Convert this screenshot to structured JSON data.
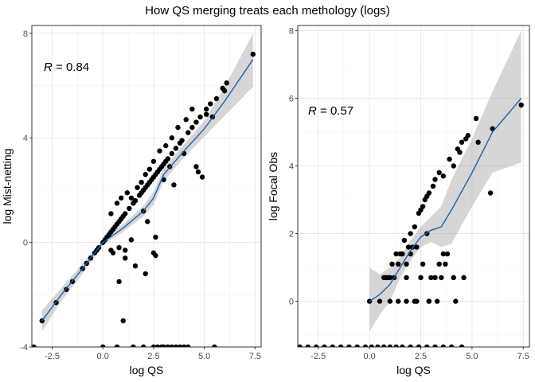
{
  "title": "How QS merging treats each methology (logs)",
  "chart_data": [
    {
      "type": "scatter",
      "xlabel": "log QS",
      "ylabel": "log Mist-netting",
      "xlim": [
        -3.5,
        7.8
      ],
      "ylim": [
        -4,
        8.3
      ],
      "xticks": [
        -2.5,
        0.0,
        2.5,
        5.0,
        7.5
      ],
      "xtick_labels": [
        "-2.5",
        "0.0",
        "2.5",
        "5.0",
        "7.5"
      ],
      "yticks": [
        -4,
        0,
        4,
        8
      ],
      "ytick_labels": [
        "-4",
        "0",
        "4",
        "8"
      ],
      "annotation": {
        "r_symbol": "R",
        "text": " = 0.84"
      },
      "grid": true,
      "legend": "none",
      "points": [
        [
          -3.0,
          -3.0
        ],
        [
          -2.3,
          -2.3
        ],
        [
          -1.8,
          -1.8
        ],
        [
          -1.5,
          -1.5
        ],
        [
          -1.0,
          -1.0
        ],
        [
          -0.8,
          -0.8
        ],
        [
          -0.6,
          -0.6
        ],
        [
          -0.4,
          -0.4
        ],
        [
          -0.3,
          -0.3
        ],
        [
          -0.2,
          -0.2
        ],
        [
          0.0,
          0.0
        ],
        [
          0.1,
          0.1
        ],
        [
          0.2,
          0.2
        ],
        [
          0.3,
          0.3
        ],
        [
          0.4,
          0.4
        ],
        [
          0.5,
          0.5
        ],
        [
          0.6,
          0.6
        ],
        [
          0.7,
          0.7
        ],
        [
          0.8,
          0.8
        ],
        [
          0.9,
          0.9
        ],
        [
          1.0,
          1.0
        ],
        [
          1.1,
          1.1
        ],
        [
          1.3,
          1.3
        ],
        [
          1.5,
          1.5
        ],
        [
          1.6,
          1.6
        ],
        [
          1.8,
          1.8
        ],
        [
          1.9,
          1.9
        ],
        [
          2.0,
          2.0
        ],
        [
          2.1,
          2.1
        ],
        [
          2.2,
          2.2
        ],
        [
          2.3,
          2.3
        ],
        [
          2.4,
          2.4
        ],
        [
          2.5,
          2.5
        ],
        [
          2.6,
          2.6
        ],
        [
          2.7,
          2.7
        ],
        [
          2.8,
          2.8
        ],
        [
          2.9,
          2.9
        ],
        [
          3.0,
          3.0
        ],
        [
          3.1,
          3.1
        ],
        [
          3.2,
          3.2
        ],
        [
          3.4,
          3.4
        ],
        [
          3.6,
          3.6
        ],
        [
          3.8,
          3.8
        ],
        [
          3.9,
          3.9
        ],
        [
          4.2,
          4.2
        ],
        [
          4.4,
          4.4
        ],
        [
          4.6,
          4.6
        ],
        [
          4.8,
          4.8
        ],
        [
          5.1,
          5.1
        ],
        [
          5.3,
          5.3
        ],
        [
          5.9,
          5.9
        ],
        [
          6.1,
          6.1
        ],
        [
          7.4,
          7.2
        ],
        [
          0.4,
          1.1
        ],
        [
          0.7,
          1.5
        ],
        [
          0.9,
          1.7
        ],
        [
          1.2,
          1.9
        ],
        [
          1.4,
          1.7
        ],
        [
          1.7,
          2.1
        ],
        [
          1.9,
          2.3
        ],
        [
          2.1,
          2.6
        ],
        [
          2.3,
          2.8
        ],
        [
          2.5,
          3.1
        ],
        [
          2.8,
          3.5
        ],
        [
          3.1,
          3.7
        ],
        [
          3.4,
          4.0
        ],
        [
          3.7,
          4.4
        ],
        [
          4.1,
          4.7
        ],
        [
          4.4,
          5.1
        ],
        [
          5.6,
          5.5
        ],
        [
          6.0,
          5.8
        ],
        [
          5.4,
          4.8
        ],
        [
          0.8,
          -0.2
        ],
        [
          1.1,
          -0.6
        ],
        [
          1.4,
          0.1
        ],
        [
          1.6,
          -0.9
        ],
        [
          2.0,
          1.2
        ],
        [
          2.2,
          0.8
        ],
        [
          2.5,
          -0.4
        ],
        [
          2.6,
          0.2
        ],
        [
          3.0,
          2.4
        ],
        [
          3.3,
          2.9
        ],
        [
          3.5,
          2.2
        ],
        [
          4.0,
          3.4
        ],
        [
          4.6,
          2.9
        ],
        [
          4.7,
          2.7
        ],
        [
          4.9,
          2.5
        ],
        [
          5.1,
          4.9
        ],
        [
          2.1,
          -1.2
        ],
        [
          2.6,
          -0.5
        ],
        [
          0.4,
          -0.3
        ],
        [
          0.5,
          -0.4
        ],
        [
          1.1,
          -0.3
        ],
        [
          0.8,
          -1.5
        ],
        [
          1.0,
          -3.0
        ],
        [
          -3.4,
          -4.0
        ],
        [
          0.0,
          -4.0
        ],
        [
          0.7,
          -4.0
        ],
        [
          1.5,
          -4.0
        ],
        [
          2.0,
          -4.0
        ],
        [
          2.5,
          -4.0
        ],
        [
          2.7,
          -4.0
        ],
        [
          2.9,
          -4.0
        ],
        [
          3.0,
          -4.0
        ],
        [
          3.2,
          -4.0
        ],
        [
          3.4,
          -4.0
        ],
        [
          3.6,
          -4.0
        ],
        [
          3.8,
          -4.0
        ],
        [
          4.0,
          -4.0
        ],
        [
          4.2,
          -4.0
        ],
        [
          5.5,
          -4.0
        ]
      ],
      "fit_line": [
        [
          -3.0,
          -3.0
        ],
        [
          -2.0,
          -1.95
        ],
        [
          -1.0,
          -1.0
        ],
        [
          0.0,
          0.0
        ],
        [
          1.0,
          0.55
        ],
        [
          2.0,
          1.2
        ],
        [
          2.5,
          1.7
        ],
        [
          3.0,
          2.6
        ],
        [
          4.0,
          3.5
        ],
        [
          5.0,
          4.35
        ],
        [
          6.0,
          5.4
        ],
        [
          7.4,
          7.0
        ]
      ],
      "ci_upper": [
        [
          -3.0,
          -2.6
        ],
        [
          -2.0,
          -1.7
        ],
        [
          -1.0,
          -0.8
        ],
        [
          0.0,
          0.1
        ],
        [
          1.0,
          0.7
        ],
        [
          2.0,
          1.4
        ],
        [
          2.5,
          1.95
        ],
        [
          3.0,
          2.85
        ],
        [
          4.0,
          3.75
        ],
        [
          5.0,
          4.65
        ],
        [
          6.0,
          5.95
        ],
        [
          7.4,
          8.0
        ]
      ],
      "ci_lower": [
        [
          -3.0,
          -3.4
        ],
        [
          -2.0,
          -2.2
        ],
        [
          -1.0,
          -1.2
        ],
        [
          0.0,
          -0.1
        ],
        [
          1.0,
          0.4
        ],
        [
          2.0,
          1.0
        ],
        [
          2.5,
          1.45
        ],
        [
          3.0,
          2.35
        ],
        [
          4.0,
          3.25
        ],
        [
          5.0,
          4.05
        ],
        [
          6.0,
          4.85
        ],
        [
          7.4,
          5.95
        ]
      ]
    },
    {
      "type": "scatter",
      "xlabel": "log QS",
      "ylabel": "log Focal Obs",
      "xlim": [
        -3.5,
        7.8
      ],
      "ylim": [
        -1.35,
        8.15
      ],
      "xticks": [
        -2.5,
        0.0,
        2.5,
        5.0,
        7.5
      ],
      "xtick_labels": [
        "-2.5",
        "0.0",
        "2.5",
        "5.0",
        "7.5"
      ],
      "yticks": [
        0,
        2,
        4,
        6,
        8
      ],
      "ytick_labels": [
        "0",
        "2",
        "4",
        "6",
        "8"
      ],
      "annotation": {
        "r_symbol": "R",
        "text": " = 0.57"
      },
      "grid": true,
      "legend": "none",
      "points": [
        [
          0.0,
          0.0
        ],
        [
          0.7,
          0.7
        ],
        [
          0.8,
          0.7
        ],
        [
          0.9,
          0.7
        ],
        [
          1.0,
          0.7
        ],
        [
          1.1,
          1.1
        ],
        [
          1.2,
          0.7
        ],
        [
          1.3,
          1.4
        ],
        [
          1.4,
          1.1
        ],
        [
          1.5,
          1.4
        ],
        [
          1.6,
          1.4
        ],
        [
          1.7,
          1.8
        ],
        [
          1.8,
          1.1
        ],
        [
          1.9,
          1.6
        ],
        [
          2.0,
          2.0
        ],
        [
          2.1,
          1.6
        ],
        [
          2.2,
          2.2
        ],
        [
          2.3,
          1.6
        ],
        [
          2.4,
          2.6
        ],
        [
          2.5,
          2.7
        ],
        [
          2.6,
          2.8
        ],
        [
          2.7,
          3.0
        ],
        [
          2.8,
          3.1
        ],
        [
          2.9,
          3.2
        ],
        [
          3.1,
          3.4
        ],
        [
          3.2,
          3.6
        ],
        [
          3.4,
          3.8
        ],
        [
          3.6,
          3.7
        ],
        [
          3.9,
          4.2
        ],
        [
          4.1,
          4.0
        ],
        [
          4.3,
          4.5
        ],
        [
          4.4,
          4.4
        ],
        [
          4.5,
          4.7
        ],
        [
          4.7,
          4.8
        ],
        [
          4.8,
          4.9
        ],
        [
          5.2,
          5.4
        ],
        [
          5.3,
          4.7
        ],
        [
          6.0,
          5.1
        ],
        [
          5.9,
          3.2
        ],
        [
          7.4,
          5.8
        ],
        [
          0.5,
          0.0
        ],
        [
          1.0,
          0.0
        ],
        [
          1.4,
          0.0
        ],
        [
          1.8,
          0.0
        ],
        [
          2.2,
          0.0
        ],
        [
          2.6,
          1.1
        ],
        [
          2.9,
          0.0
        ],
        [
          3.3,
          0.0
        ],
        [
          3.4,
          1.1
        ],
        [
          3.5,
          0.7
        ],
        [
          3.7,
          1.1
        ],
        [
          3.8,
          1.4
        ],
        [
          4.2,
          0.0
        ],
        [
          1.8,
          0.7
        ],
        [
          2.5,
          0.7
        ],
        [
          3.0,
          0.7
        ],
        [
          3.2,
          0.7
        ],
        [
          4.1,
          0.7
        ],
        [
          4.6,
          0.7
        ],
        [
          2.8,
          2.0
        ],
        [
          2.0,
          1.4
        ],
        [
          3.6,
          1.4
        ],
        [
          2.3,
          0.0
        ],
        [
          2.9,
          0.0
        ],
        [
          -3.4,
          -1.35
        ],
        [
          -3.0,
          -1.35
        ],
        [
          -2.6,
          -1.35
        ],
        [
          -2.2,
          -1.35
        ],
        [
          -1.8,
          -1.35
        ],
        [
          -1.4,
          -1.35
        ],
        [
          -1.0,
          -1.35
        ],
        [
          -0.6,
          -1.35
        ],
        [
          -0.2,
          -1.35
        ],
        [
          0.1,
          -1.35
        ],
        [
          0.4,
          -1.35
        ],
        [
          0.7,
          -1.35
        ],
        [
          1.0,
          -1.35
        ],
        [
          1.3,
          -1.35
        ],
        [
          1.6,
          -1.35
        ],
        [
          2.0,
          -1.35
        ],
        [
          2.4,
          -1.35
        ],
        [
          2.8,
          -1.35
        ],
        [
          3.2,
          -1.35
        ],
        [
          3.6,
          -1.35
        ],
        [
          4.0,
          -1.35
        ],
        [
          4.5,
          -1.35
        ]
      ],
      "fit_line": [
        [
          0.0,
          0.0
        ],
        [
          0.5,
          0.2
        ],
        [
          1.0,
          0.5
        ],
        [
          1.5,
          1.0
        ],
        [
          2.0,
          1.5
        ],
        [
          2.5,
          1.9
        ],
        [
          3.0,
          2.1
        ],
        [
          3.5,
          2.2
        ],
        [
          4.0,
          2.7
        ],
        [
          5.0,
          3.8
        ],
        [
          6.0,
          5.0
        ],
        [
          7.4,
          6.0
        ]
      ],
      "ci_upper": [
        [
          0.0,
          1.0
        ],
        [
          0.5,
          0.8
        ],
        [
          1.0,
          1.0
        ],
        [
          1.5,
          1.3
        ],
        [
          2.0,
          1.8
        ],
        [
          2.5,
          2.2
        ],
        [
          3.0,
          2.5
        ],
        [
          3.5,
          2.8
        ],
        [
          4.0,
          3.6
        ],
        [
          5.0,
          4.8
        ],
        [
          6.0,
          6.2
        ],
        [
          7.4,
          8.0
        ]
      ],
      "ci_lower": [
        [
          0.0,
          -0.9
        ],
        [
          0.5,
          -0.4
        ],
        [
          1.0,
          0.0
        ],
        [
          1.5,
          0.7
        ],
        [
          2.0,
          1.2
        ],
        [
          2.5,
          1.6
        ],
        [
          3.0,
          1.75
        ],
        [
          3.5,
          1.6
        ],
        [
          4.0,
          1.7
        ],
        [
          5.0,
          2.8
        ],
        [
          6.0,
          3.8
        ],
        [
          7.4,
          4.1
        ]
      ]
    }
  ]
}
